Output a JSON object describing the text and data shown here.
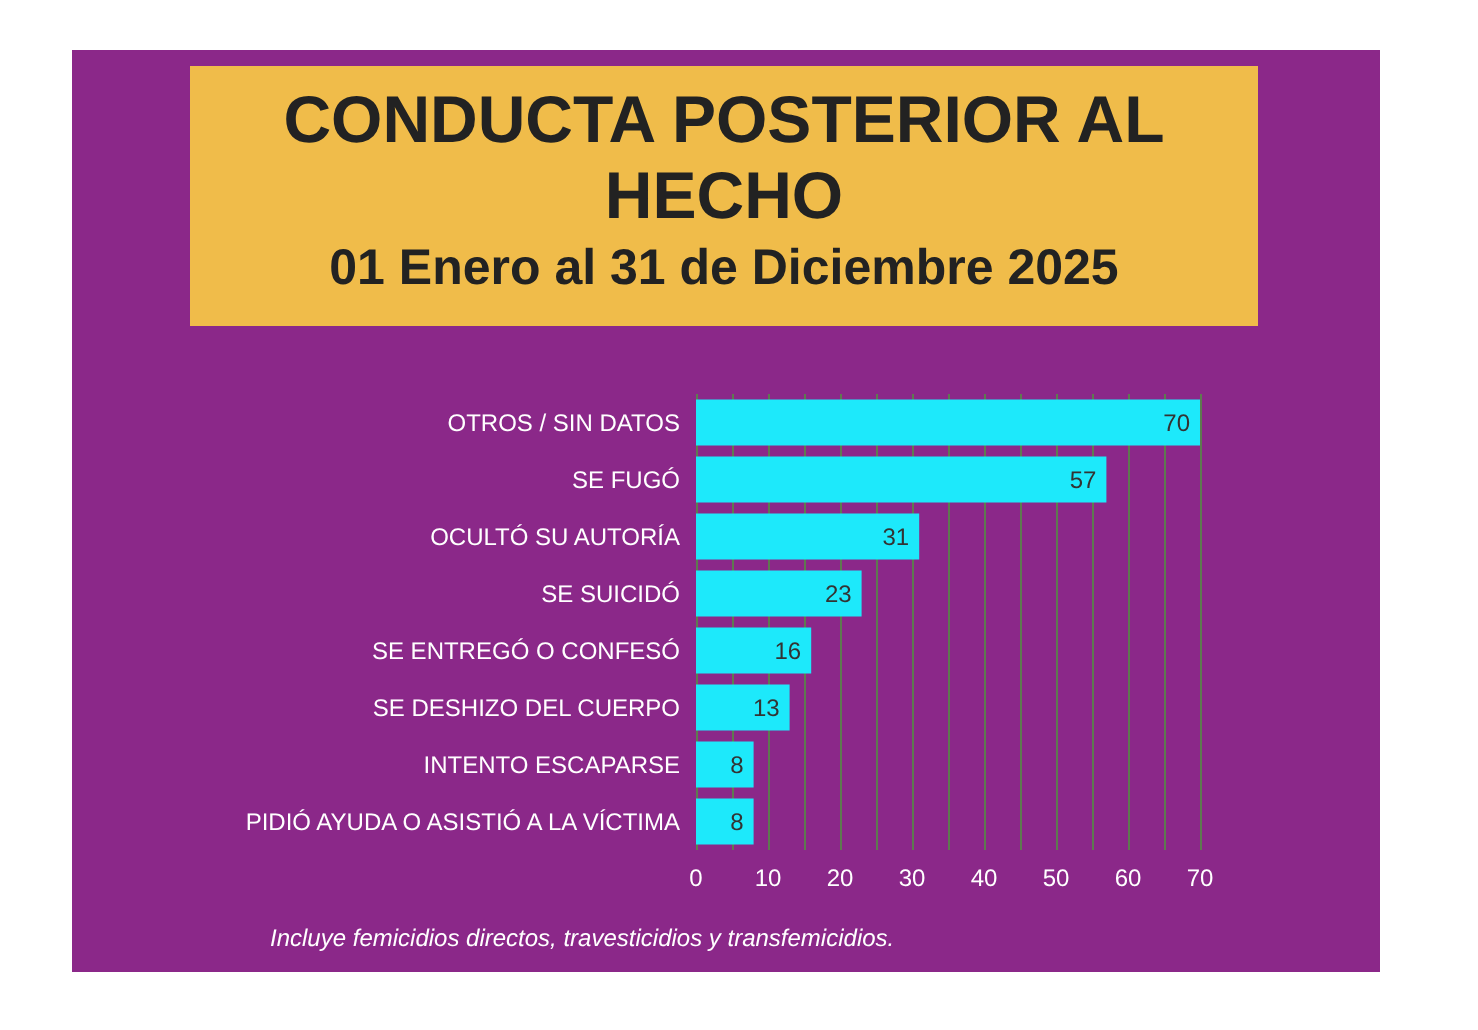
{
  "chart_data": {
    "type": "bar",
    "orientation": "horizontal",
    "title": "CONDUCTA POSTERIOR AL HECHO",
    "subtitle": "01 Enero al 31 de Diciembre 2025",
    "categories": [
      "OTROS / SIN DATOS",
      "SE FUGÓ",
      "OCULTÓ SU AUTORÍA",
      "SE SUICIDÓ",
      "SE ENTREGÓ O CONFESÓ",
      "SE DESHIZO DEL CUERPO",
      "INTENTO ESCAPARSE",
      "PIDIÓ AYUDA O ASISTIÓ A LA VÍCTIMA"
    ],
    "values": [
      70,
      57,
      31,
      23,
      16,
      13,
      8,
      8
    ],
    "color": "#1de9fb",
    "xlim": [
      0,
      70
    ],
    "xticks": [
      0,
      {
        "value": 5,
        "label": null
      },
      10,
      {
        "value": 15,
        "label": null
      },
      20,
      {
        "value": 25,
        "label": null
      },
      30,
      {
        "value": 35,
        "label": null
      },
      40,
      {
        "value": 45,
        "label": null
      },
      50,
      {
        "value": 55,
        "label": null
      },
      60,
      {
        "value": 65,
        "label": null
      },
      70
    ],
    "grid": "x",
    "data_labels": true,
    "annotations": [
      "Incluye femicidios directos, travesticidios y transfemicidios."
    ]
  }
}
